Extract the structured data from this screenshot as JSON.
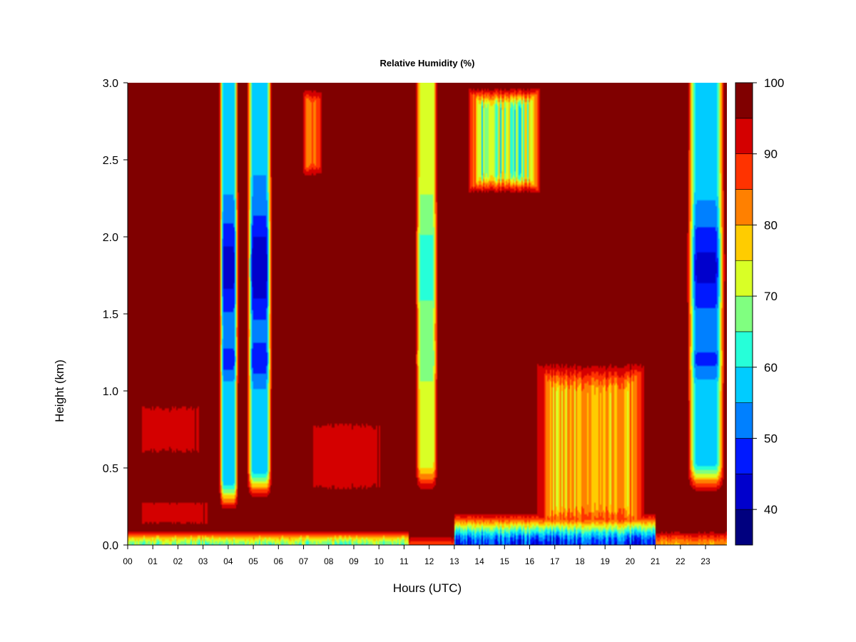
{
  "chart_data": {
    "type": "heatmap",
    "title": "Relative Humidity (%)",
    "xlabel": "Hours (UTC)",
    "ylabel": "Height (km)",
    "xlim": [
      0,
      23.85
    ],
    "ylim": [
      0,
      3.0
    ],
    "x_ticks": [
      {
        "value": 0,
        "label": "00"
      },
      {
        "value": 1,
        "label": "01"
      },
      {
        "value": 2,
        "label": "02"
      },
      {
        "value": 3,
        "label": "03"
      },
      {
        "value": 4,
        "label": "04"
      },
      {
        "value": 5,
        "label": "05"
      },
      {
        "value": 6,
        "label": "06"
      },
      {
        "value": 7,
        "label": "07"
      },
      {
        "value": 8,
        "label": "08"
      },
      {
        "value": 9,
        "label": "09"
      },
      {
        "value": 10,
        "label": "10"
      },
      {
        "value": 11,
        "label": "11"
      },
      {
        "value": 12,
        "label": "12"
      },
      {
        "value": 13,
        "label": "13"
      },
      {
        "value": 14,
        "label": "14"
      },
      {
        "value": 15,
        "label": "15"
      },
      {
        "value": 16,
        "label": "16"
      },
      {
        "value": 17,
        "label": "17"
      },
      {
        "value": 18,
        "label": "18"
      },
      {
        "value": 19,
        "label": "19"
      },
      {
        "value": 20,
        "label": "20"
      },
      {
        "value": 21,
        "label": "21"
      },
      {
        "value": 22,
        "label": "22"
      },
      {
        "value": 23,
        "label": "23"
      }
    ],
    "y_ticks": [
      {
        "value": 0.0,
        "label": "0.0"
      },
      {
        "value": 0.5,
        "label": "0.5"
      },
      {
        "value": 1.0,
        "label": "1.0"
      },
      {
        "value": 1.5,
        "label": "1.5"
      },
      {
        "value": 2.0,
        "label": "2.0"
      },
      {
        "value": 2.5,
        "label": "2.5"
      },
      {
        "value": 3.0,
        "label": "3.0"
      }
    ],
    "colorbar": {
      "range": [
        35,
        100
      ],
      "levels": [
        35,
        40,
        45,
        50,
        55,
        60,
        65,
        70,
        75,
        80,
        85,
        90,
        95,
        100
      ],
      "colors": [
        "#00007f",
        "#0000cc",
        "#0019ff",
        "#0080ff",
        "#00ccff",
        "#26ffd9",
        "#80ff80",
        "#d9ff26",
        "#ffcc00",
        "#ff8000",
        "#ff3300",
        "#d40000",
        "#800000"
      ],
      "ticks": [
        {
          "value": 40,
          "label": "40"
        },
        {
          "value": 50,
          "label": "50"
        },
        {
          "value": 60,
          "label": "60"
        },
        {
          "value": 70,
          "label": "70"
        },
        {
          "value": 80,
          "label": "80"
        },
        {
          "value": 90,
          "label": "90"
        },
        {
          "value": 100,
          "label": "100"
        }
      ]
    },
    "field": {
      "background_rh": 100,
      "features": [
        {
          "type": "surface_layer",
          "x0": 0.0,
          "x1": 11.2,
          "top": 0.12,
          "min_rh": 62
        },
        {
          "type": "surface_layer",
          "x0": 11.2,
          "x1": 13.0,
          "top": 0.08,
          "min_rh": 85
        },
        {
          "type": "surface_layer",
          "x0": 13.0,
          "x1": 21.0,
          "top": 0.25,
          "min_rh": 40
        },
        {
          "type": "surface_layer",
          "x0": 21.0,
          "x1": 23.85,
          "top": 0.12,
          "min_rh": 78
        },
        {
          "type": "moist_patch",
          "x0": 0.1,
          "x1": 3.2,
          "y0": 0.55,
          "y1": 0.95,
          "min_rh": 91
        },
        {
          "type": "moist_patch",
          "x0": 6.8,
          "x1": 10.6,
          "y0": 0.3,
          "y1": 0.85,
          "min_rh": 90
        },
        {
          "type": "moist_patch",
          "x0": 0.1,
          "x1": 3.6,
          "y0": 0.12,
          "y1": 0.3,
          "min_rh": 90
        },
        {
          "type": "dry_column",
          "x0": 3.6,
          "x1": 4.45,
          "y0": 0.3,
          "min_rh": 43
        },
        {
          "type": "dry_column",
          "x0": 4.7,
          "x1": 5.8,
          "y0": 0.38,
          "min_rh": 41
        },
        {
          "type": "dry_column",
          "x0": 11.4,
          "x1": 12.4,
          "y0": 0.42,
          "min_rh": 62
        },
        {
          "type": "dry_column",
          "x0": 22.2,
          "x1": 23.85,
          "y0": 0.42,
          "min_rh": 44
        },
        {
          "type": "dry_patch",
          "x0": 13.4,
          "x1": 16.6,
          "y0": 2.25,
          "y1": 3.0,
          "min_rh": 58
        },
        {
          "type": "dry_patch",
          "x0": 6.9,
          "x1": 7.8,
          "y0": 2.35,
          "y1": 3.0,
          "min_rh": 80
        },
        {
          "type": "dry_patch",
          "x0": 16.0,
          "x1": 20.9,
          "y0": 0.0,
          "y1": 1.25,
          "min_rh": 72
        }
      ]
    }
  }
}
